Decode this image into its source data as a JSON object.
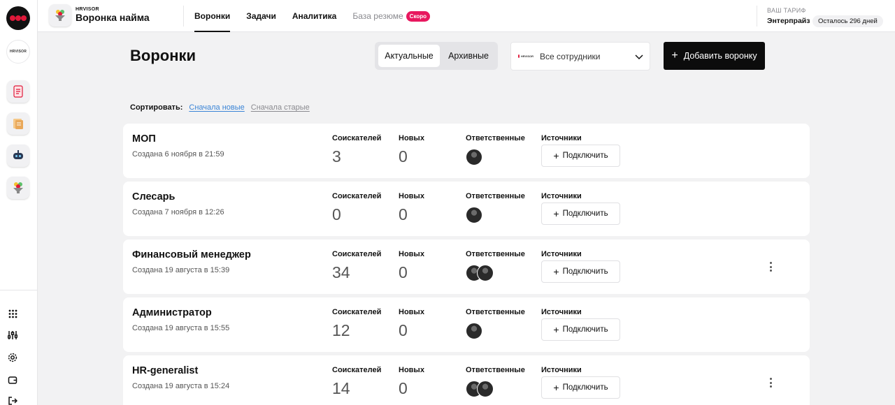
{
  "header": {
    "brand_small": "HRVISOR",
    "app_title": "Воронка найма",
    "nav": [
      {
        "label": "Воронки",
        "active": true
      },
      {
        "label": "Задачи",
        "active": false
      },
      {
        "label": "Аналитика",
        "active": false
      },
      {
        "label": "База резюме",
        "active": false,
        "badge": "Скоро"
      }
    ],
    "tariff": {
      "label": "ВАШ ТАРИФ",
      "name": "Энтерпрайз",
      "remaining": "Осталось 296 дней"
    }
  },
  "rail": {
    "brand_mini": "HRVISOR",
    "apps": [
      "checklist-app-icon",
      "documents-app-icon",
      "robot-app-icon",
      "funnel-app-icon"
    ],
    "tools": [
      "grid-icon",
      "sliders-icon",
      "gear-icon",
      "wallet-icon",
      "logout-icon"
    ]
  },
  "page": {
    "title": "Воронки",
    "segment": {
      "active": "Актуальные",
      "inactive": "Архивные"
    },
    "employees_select": "Все сотрудники",
    "add_button": "Добавить воронку",
    "sort": {
      "label": "Сортировать:",
      "newest": "Сначала новые",
      "oldest": "Сначала старые"
    }
  },
  "columns": {
    "candidates": "Соискателей",
    "new": "Новых",
    "responsible": "Ответственные",
    "sources": "Источники",
    "connect": "Подключить"
  },
  "funnels": [
    {
      "name": "МОП",
      "created": "Создана 6 ноября в 21:59",
      "candidates": "3",
      "new": "0",
      "responsible_count": 1,
      "menu": false
    },
    {
      "name": "Слесарь",
      "created": "Создана 7 ноября в 12:26",
      "candidates": "0",
      "new": "0",
      "responsible_count": 1,
      "menu": false
    },
    {
      "name": "Финансовый менеджер",
      "created": "Создана 19 августа в 15:39",
      "candidates": "34",
      "new": "0",
      "responsible_count": 2,
      "menu": true
    },
    {
      "name": "Администратор",
      "created": "Создана 19 августа в 15:55",
      "candidates": "12",
      "new": "0",
      "responsible_count": 1,
      "menu": false
    },
    {
      "name": "HR-generalist",
      "created": "Создана 19 августа в 15:24",
      "candidates": "14",
      "new": "0",
      "responsible_count": 2,
      "menu": true
    }
  ]
}
